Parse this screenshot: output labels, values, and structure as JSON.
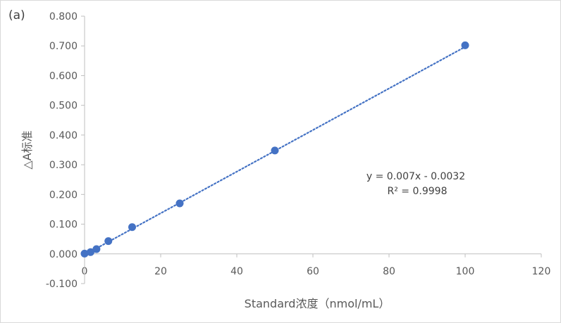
{
  "panel_label": "(a)",
  "colors": {
    "marker": "#4472c4",
    "trendline": "#4472c4",
    "axis": "#bfbfbf",
    "text": "#595959"
  },
  "chart_data": {
    "type": "scatter",
    "title": "",
    "xlabel": "Standard浓度（nmol/mL）",
    "ylabel": "△A标准",
    "xlim": [
      0,
      120
    ],
    "ylim": [
      -0.1,
      0.8
    ],
    "x_ticks": [
      "0",
      "20",
      "40",
      "60",
      "80",
      "100",
      "120"
    ],
    "y_ticks": [
      "-0.100",
      "0.000",
      "0.100",
      "0.200",
      "0.300",
      "0.400",
      "0.500",
      "0.600",
      "0.700",
      "0.800"
    ],
    "grid": false,
    "series": [
      {
        "x": [
          0,
          1.5625,
          3.125,
          6.25,
          12.5,
          25,
          50,
          100
        ],
        "y": [
          0.001,
          0.006,
          0.016,
          0.043,
          0.09,
          0.17,
          0.348,
          0.702
        ]
      }
    ],
    "trendline": {
      "slope": 0.007,
      "intercept": -0.0032,
      "style": "dotted",
      "x_range": [
        0,
        100
      ]
    },
    "annotations": {
      "equation": "y = 0.007x - 0.0032",
      "r_squared": "R² = 0.9998"
    }
  }
}
